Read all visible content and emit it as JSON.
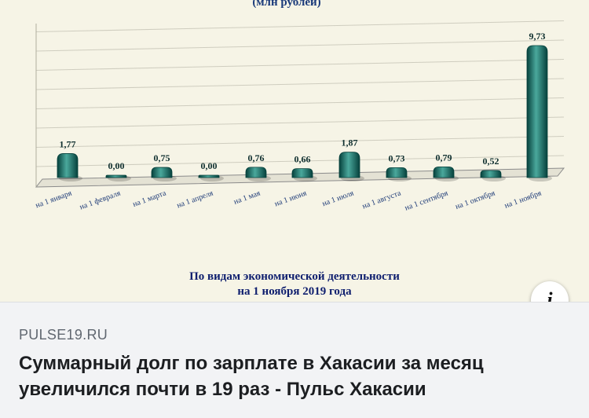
{
  "link_preview": {
    "source": "PULSE19.RU",
    "headline": "Суммарный долг по зарплате в Хакасии за месяц увеличился почти в 19 раз - Пульс Хакасии",
    "info_icon": "info-icon"
  },
  "chart_data": {
    "type": "bar",
    "unit_note": "(млн рублей)",
    "categories": [
      "на 1 января",
      "на 1 февраля",
      "на 1 марта",
      "на 1 апреля",
      "на 1 мая",
      "на 1 июня",
      "на 1 июля",
      "на 1 августа",
      "на 1 сентября",
      "на 1 октября",
      "на 1 ноября"
    ],
    "values": [
      1.77,
      0.0,
      0.75,
      0.0,
      0.76,
      0.66,
      1.87,
      0.73,
      0.79,
      0.52,
      9.73
    ],
    "value_labels": [
      "1,77",
      "0,00",
      "0,75",
      "0,00",
      "0,76",
      "0,66",
      "1,87",
      "0,73",
      "0,79",
      "0,52",
      "9,73"
    ],
    "ylim": [
      0,
      10
    ],
    "grid": true,
    "colors": {
      "bar": "#0e6e66",
      "bar_dark": "#06413c",
      "bar_light": "#4aa89c",
      "background": "#f6f4e6"
    },
    "caption_lines": [
      "По видам экономической деятельности",
      "на 1 ноября 2019 года"
    ]
  }
}
